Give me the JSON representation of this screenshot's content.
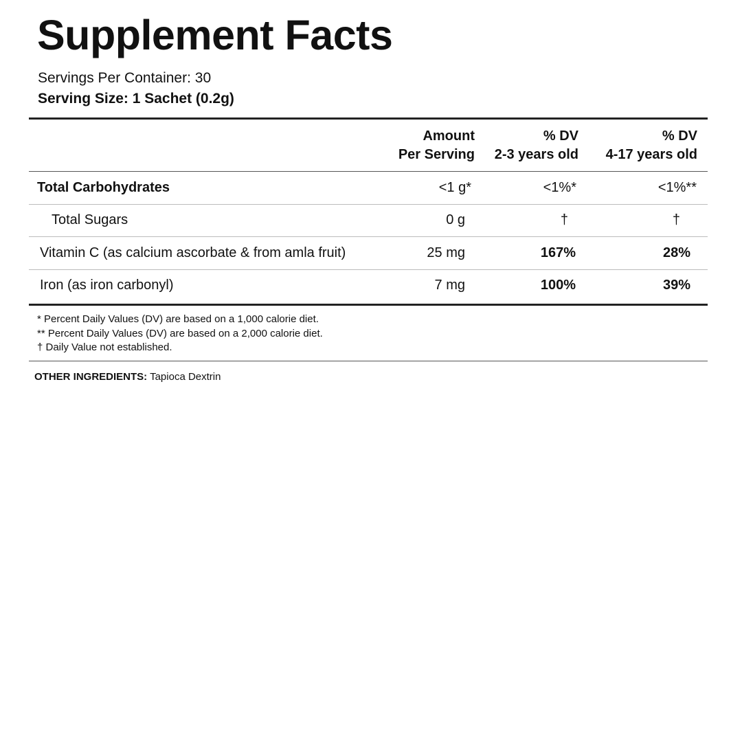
{
  "title": "Supplement Facts",
  "servings_per_container": "Servings Per Container: 30",
  "serving_size": "Serving Size: 1 Sachet (0.2g)",
  "columns": {
    "amount": [
      "Amount",
      "Per Serving"
    ],
    "dv_young": [
      "% DV",
      "2-3 years old"
    ],
    "dv_old": [
      "% DV",
      "4-17 years old"
    ]
  },
  "rows": [
    {
      "name": "Total Carbohydrates",
      "amount": "<1 g*",
      "dv_young": "<1%*",
      "dv_old": "<1%**"
    },
    {
      "name": "Total Sugars",
      "amount": "0 g",
      "dv_young": "†",
      "dv_old": "†"
    },
    {
      "name": "Vitamin C (as calcium ascorbate & from amla fruit)",
      "amount": "25 mg",
      "dv_young": "167%",
      "dv_old": "28%"
    },
    {
      "name": "Iron (as iron carbonyl)",
      "amount": "7 mg",
      "dv_young": "100%",
      "dv_old": "39%"
    }
  ],
  "footnotes": [
    "* Percent Daily Values (DV) are based on a 1,000 calorie diet.",
    "** Percent Daily Values (DV) are based on a 2,000 calorie diet.",
    "† Daily Value not established."
  ],
  "other_ingredients": {
    "label": "OTHER INGREDIENTS:",
    "value": "Tapioca Dextrin"
  }
}
